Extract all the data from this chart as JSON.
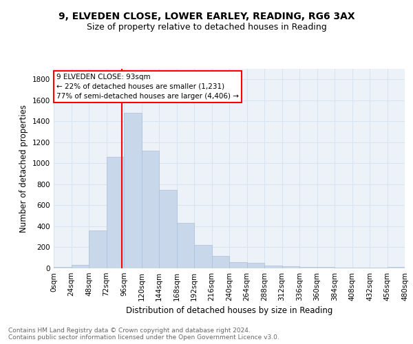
{
  "title_line1": "9, ELVEDEN CLOSE, LOWER EARLEY, READING, RG6 3AX",
  "title_line2": "Size of property relative to detached houses in Reading",
  "xlabel": "Distribution of detached houses by size in Reading",
  "ylabel": "Number of detached properties",
  "bar_color": "#c8d8ea",
  "bar_edge_color": "#a8c0d8",
  "grid_color": "#d8e4f0",
  "background_color": "#edf2f8",
  "annotation_text": "9 ELVEDEN CLOSE: 93sqm\n← 22% of detached houses are smaller (1,231)\n77% of semi-detached houses are larger (4,406) →",
  "annotation_box_color": "white",
  "annotation_border_color": "red",
  "vline_x": 93,
  "vline_color": "red",
  "bin_edges": [
    0,
    24,
    48,
    72,
    96,
    120,
    144,
    168,
    192,
    216,
    240,
    264,
    288,
    312,
    336,
    360,
    384,
    408,
    432,
    456,
    480
  ],
  "bar_heights": [
    15,
    35,
    360,
    1060,
    1480,
    1120,
    750,
    435,
    225,
    115,
    60,
    50,
    25,
    20,
    15,
    10,
    8,
    5,
    5,
    15
  ],
  "ylim": [
    0,
    1900
  ],
  "yticks": [
    0,
    200,
    400,
    600,
    800,
    1000,
    1200,
    1400,
    1600,
    1800
  ],
  "footer_text": "Contains HM Land Registry data © Crown copyright and database right 2024.\nContains public sector information licensed under the Open Government Licence v3.0.",
  "title_fontsize": 10,
  "subtitle_fontsize": 9,
  "axis_label_fontsize": 8.5,
  "tick_fontsize": 7.5,
  "footer_fontsize": 6.5,
  "annot_fontsize": 7.5
}
